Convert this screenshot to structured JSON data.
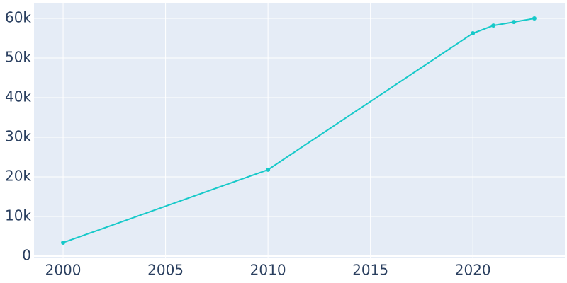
{
  "chart_data": {
    "type": "line",
    "x": [
      2000,
      2010,
      2020,
      2021,
      2022,
      2023
    ],
    "values": [
      3400,
      21800,
      56250,
      58200,
      59100,
      60000
    ],
    "color": "#17c9c9",
    "xlim": [
      1998.58,
      2024.49
    ],
    "xticks": [
      2000,
      2005,
      2010,
      2015,
      2020
    ],
    "ylim": [
      -540,
      63940
    ],
    "yticks": [
      0,
      {
        "value": 10000,
        "label": "10k"
      },
      {
        "value": 20000,
        "label": "20k"
      },
      {
        "value": 30000,
        "label": "30k"
      },
      {
        "value": 40000,
        "label": "40k"
      },
      {
        "value": 50000,
        "label": "50k"
      },
      {
        "value": 60000,
        "label": "60k"
      }
    ],
    "grid": true
  }
}
